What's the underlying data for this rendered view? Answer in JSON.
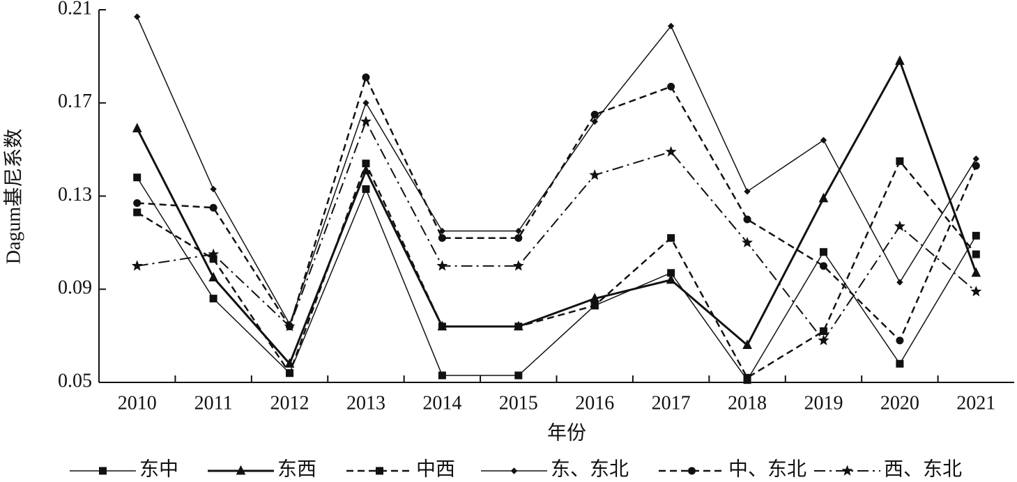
{
  "chart_data": {
    "type": "line",
    "x_label": "年份",
    "y_label": "Dagum基尼系数",
    "categories": [
      "2010",
      "2011",
      "2012",
      "2013",
      "2014",
      "2015",
      "2016",
      "2017",
      "2018",
      "2019",
      "2020",
      "2021"
    ],
    "ylim": [
      0.05,
      0.21
    ],
    "yticks": [
      0.05,
      0.09,
      0.13,
      0.17,
      0.21
    ],
    "series": [
      {
        "name": "东中",
        "color": "#111111",
        "line_style": "solid",
        "linewidth": 1.5,
        "marker": "square",
        "values": [
          0.138,
          0.086,
          0.054,
          0.133,
          0.053,
          0.053,
          0.083,
          0.097,
          0.051,
          0.106,
          0.058,
          0.113
        ]
      },
      {
        "name": "东西",
        "color": "#111111",
        "line_style": "solid",
        "linewidth": 3,
        "marker": "triangle",
        "values": [
          0.159,
          0.095,
          0.058,
          0.141,
          0.074,
          0.074,
          0.086,
          0.094,
          0.066,
          0.129,
          0.188,
          0.097
        ]
      },
      {
        "name": "中西",
        "color": "#111111",
        "line_style": "dashed",
        "linewidth": 2.5,
        "marker": "square",
        "values": [
          0.123,
          0.103,
          0.054,
          0.144,
          0.074,
          0.074,
          0.083,
          0.112,
          0.052,
          0.072,
          0.145,
          0.105
        ]
      },
      {
        "name": "东、东北",
        "color": "#111111",
        "line_style": "solid",
        "linewidth": 1.5,
        "marker": "diamond",
        "values": [
          0.207,
          0.133,
          0.075,
          0.17,
          0.115,
          0.115,
          0.162,
          0.203,
          0.132,
          0.154,
          0.093,
          0.146
        ]
      },
      {
        "name": "中、东北",
        "color": "#111111",
        "line_style": "dashed",
        "linewidth": 2.5,
        "marker": "circle",
        "values": [
          0.127,
          0.125,
          0.074,
          0.181,
          0.112,
          0.112,
          0.165,
          0.177,
          0.12,
          0.1,
          0.068,
          0.143
        ]
      },
      {
        "name": "西、东北",
        "color": "#111111",
        "line_style": "dashdot",
        "linewidth": 2,
        "marker": "star",
        "values": [
          0.1,
          0.105,
          0.074,
          0.162,
          0.1,
          0.1,
          0.139,
          0.149,
          0.11,
          0.068,
          0.117,
          0.089
        ]
      }
    ]
  }
}
